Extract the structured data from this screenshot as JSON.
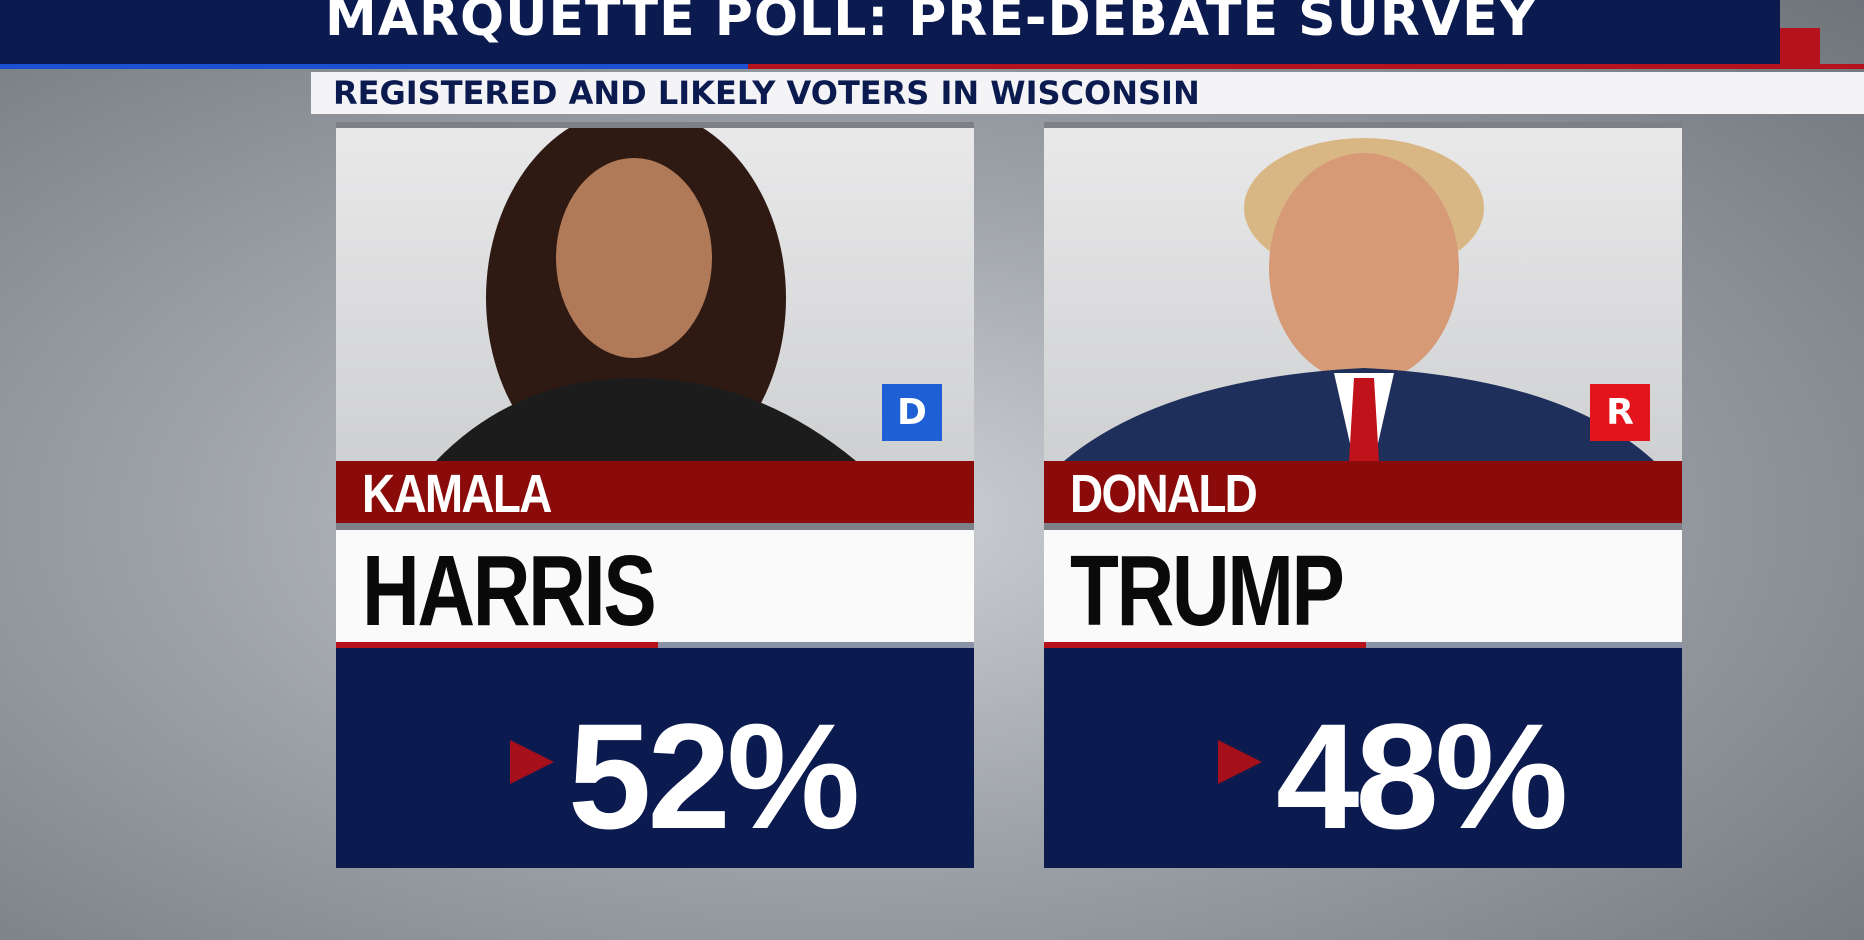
{
  "header": {
    "title": "MARQUETTE POLL: PRE-DEBATE SURVEY",
    "subtitle": "REGISTERED AND LIKELY VOTERS IN WISCONSIN"
  },
  "candidates": [
    {
      "first_name": "KAMALA",
      "last_name": "HARRIS",
      "party": "D",
      "percent": "52%"
    },
    {
      "first_name": "DONALD",
      "last_name": "TRUMP",
      "party": "R",
      "percent": "48%"
    }
  ]
}
